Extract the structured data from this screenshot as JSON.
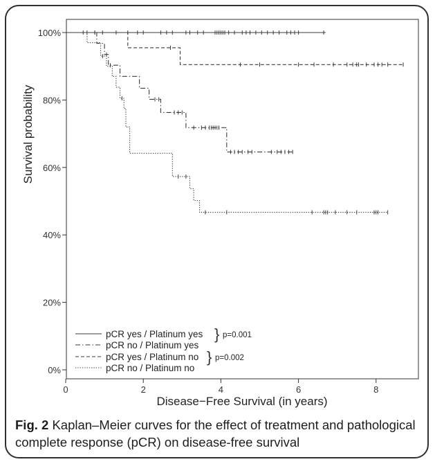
{
  "figure": {
    "caption_label": "Fig. 2",
    "caption_text": " Kaplan–Meier curves for the effect of treatment and pathological complete response (pCR) on disease-free survival"
  },
  "chart_data": {
    "type": "line",
    "title": "",
    "xlabel": "Disease−Free Survival (in years)",
    "ylabel": "Survival probability",
    "xlim": [
      0,
      8.9
    ],
    "ylim": [
      0,
      1
    ],
    "x_ticks": [
      0,
      2,
      4,
      6,
      8
    ],
    "y_ticks": [
      0,
      0.2,
      0.4,
      0.6,
      0.8,
      1.0
    ],
    "y_tick_labels": [
      "0%",
      "20%",
      "40%",
      "60%",
      "80%",
      "100%"
    ],
    "grid": false,
    "legend_position": "bottom-left",
    "series": [
      {
        "name": "pCR yes / Platinum yes",
        "line_style": "solid",
        "steps": [
          [
            0,
            1.0
          ],
          [
            6.7,
            1.0
          ]
        ],
        "censored": [
          0.45,
          0.55,
          0.75,
          0.95,
          1.3,
          1.6,
          1.85,
          2.0,
          2.45,
          2.6,
          2.75,
          3.1,
          3.2,
          3.4,
          3.55,
          3.85,
          3.9,
          3.95,
          4.0,
          4.05,
          4.1,
          4.2,
          4.35,
          4.55,
          4.65,
          4.75,
          4.9,
          5.05,
          5.2,
          5.35,
          5.5,
          5.7,
          5.8,
          5.9,
          6.0,
          6.65
        ]
      },
      {
        "name": "pCR no / Platinum yes",
        "line_style": "dashdot",
        "steps": [
          [
            0,
            1.0
          ],
          [
            0.8,
            1.0
          ],
          [
            0.8,
            0.968
          ],
          [
            1.0,
            0.968
          ],
          [
            1.0,
            0.935
          ],
          [
            1.1,
            0.935
          ],
          [
            1.1,
            0.903
          ],
          [
            1.4,
            0.903
          ],
          [
            1.4,
            0.87
          ],
          [
            1.9,
            0.87
          ],
          [
            1.9,
            0.835
          ],
          [
            2.15,
            0.835
          ],
          [
            2.15,
            0.802
          ],
          [
            2.45,
            0.802
          ],
          [
            2.45,
            0.763
          ],
          [
            3.1,
            0.763
          ],
          [
            3.1,
            0.718
          ],
          [
            4.15,
            0.718
          ],
          [
            4.15,
            0.646
          ],
          [
            5.85,
            0.646
          ]
        ],
        "censored": [
          0.75,
          1.05,
          1.15,
          2.3,
          2.4,
          2.8,
          2.9,
          3.0,
          3.3,
          3.5,
          3.6,
          3.7,
          3.75,
          3.8,
          3.85,
          3.9,
          3.95,
          4.25,
          4.35,
          4.45,
          4.55,
          4.7,
          4.8,
          5.3,
          5.45,
          5.55,
          5.65,
          5.75,
          5.85
        ]
      },
      {
        "name": "pCR yes / Platinum no",
        "line_style": "dashed",
        "steps": [
          [
            0,
            1.0
          ],
          [
            1.6,
            1.0
          ],
          [
            1.6,
            0.955
          ],
          [
            2.95,
            0.955
          ],
          [
            2.95,
            0.905
          ],
          [
            8.7,
            0.905
          ]
        ],
        "censored": [
          2.7,
          4.5,
          5.0,
          6.0,
          6.4,
          6.9,
          7.25,
          7.4,
          7.5,
          7.55,
          7.75,
          7.95,
          8.05,
          8.15,
          8.3,
          8.7
        ]
      },
      {
        "name": "pCR no / Platinum no",
        "line_style": "dotted",
        "steps": [
          [
            0,
            1.0
          ],
          [
            0.55,
            1.0
          ],
          [
            0.55,
            0.97
          ],
          [
            0.9,
            0.97
          ],
          [
            0.9,
            0.93
          ],
          [
            1.05,
            0.93
          ],
          [
            1.05,
            0.9
          ],
          [
            1.2,
            0.9
          ],
          [
            1.2,
            0.87
          ],
          [
            1.3,
            0.87
          ],
          [
            1.3,
            0.838
          ],
          [
            1.4,
            0.838
          ],
          [
            1.4,
            0.805
          ],
          [
            1.5,
            0.805
          ],
          [
            1.5,
            0.775
          ],
          [
            1.55,
            0.775
          ],
          [
            1.55,
            0.72
          ],
          [
            1.65,
            0.72
          ],
          [
            1.65,
            0.642
          ],
          [
            2.75,
            0.642
          ],
          [
            2.75,
            0.573
          ],
          [
            3.2,
            0.573
          ],
          [
            3.2,
            0.537
          ],
          [
            3.3,
            0.537
          ],
          [
            3.3,
            0.502
          ],
          [
            3.45,
            0.502
          ],
          [
            3.45,
            0.467
          ],
          [
            8.3,
            0.467
          ]
        ],
        "censored": [
          0.95,
          1.45,
          2.9,
          3.1,
          3.6,
          4.15,
          6.35,
          6.65,
          6.7,
          6.75,
          6.95,
          7.25,
          7.5,
          7.95,
          8.0,
          8.05,
          8.3
        ]
      }
    ],
    "annotations": [
      {
        "text": "p=0.001",
        "groups": [
          "pCR yes / Platinum yes",
          "pCR no / Platinum yes"
        ]
      },
      {
        "text": "p=0.002",
        "groups": [
          "pCR yes / Platinum no",
          "pCR no / Platinum no"
        ]
      }
    ]
  }
}
